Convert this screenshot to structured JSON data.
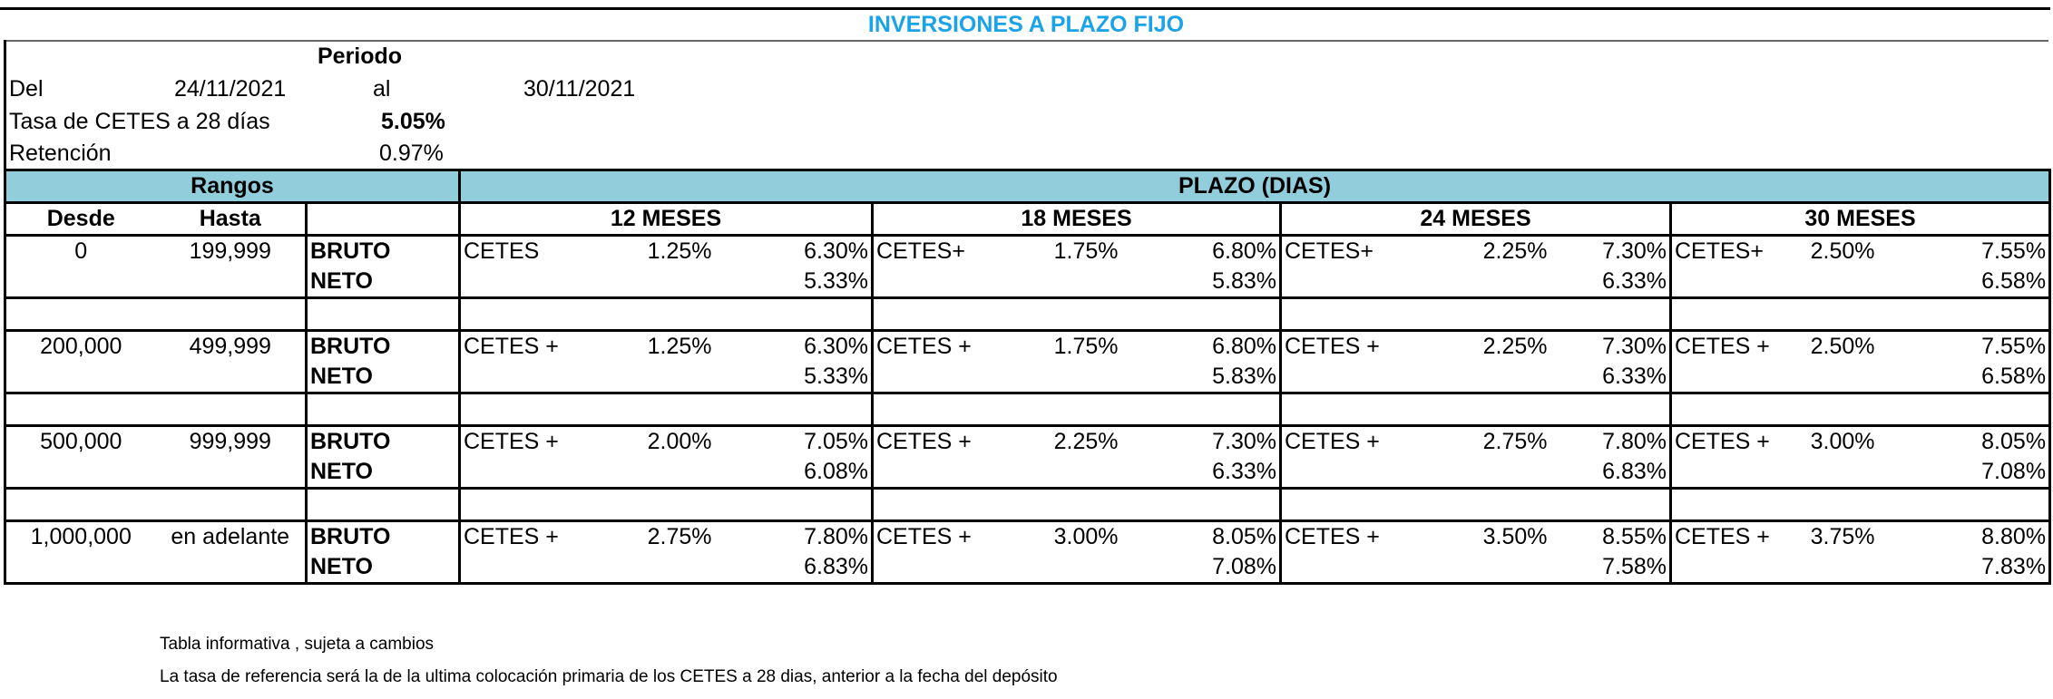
{
  "title": "INVERSIONES A PLAZO FIJO",
  "period": {
    "heading": "Periodo",
    "from_label": "Del",
    "from_date": "24/11/2021",
    "to_label": "al",
    "to_date": "30/11/2021",
    "cetes_label": "Tasa de CETES a 28 días",
    "cetes_rate": "5.05%",
    "retention_label": "Retención",
    "retention_rate": "0.97%"
  },
  "table": {
    "ranges_header": "Rangos",
    "plazo_header": "PLAZO (DIAS)",
    "desde_header": "Desde",
    "hasta_header": "Hasta",
    "terms": [
      "12 MESES",
      "18 MESES",
      "24 MESES",
      "30 MESES"
    ],
    "bruto_label": "BRUTO",
    "neto_label": "NETO",
    "groups": [
      {
        "desde": "0",
        "hasta": "199,999",
        "plazos": [
          {
            "label": "CETES",
            "spread": "1.25%",
            "bruto": "6.30%",
            "neto": "5.33%"
          },
          {
            "label": "CETES+",
            "spread": "1.75%",
            "bruto": "6.80%",
            "neto": "5.83%"
          },
          {
            "label": "CETES+",
            "spread": "2.25%",
            "bruto": "7.30%",
            "neto": "6.33%"
          },
          {
            "label": "CETES+",
            "spread": "2.50%",
            "bruto": "7.55%",
            "neto": "6.58%"
          }
        ]
      },
      {
        "desde": "200,000",
        "hasta": "499,999",
        "plazos": [
          {
            "label": "CETES +",
            "spread": "1.25%",
            "bruto": "6.30%",
            "neto": "5.33%"
          },
          {
            "label": "CETES +",
            "spread": "1.75%",
            "bruto": "6.80%",
            "neto": "5.83%"
          },
          {
            "label": "CETES +",
            "spread": "2.25%",
            "bruto": "7.30%",
            "neto": "6.33%"
          },
          {
            "label": "CETES +",
            "spread": "2.50%",
            "bruto": "7.55%",
            "neto": "6.58%"
          }
        ]
      },
      {
        "desde": "500,000",
        "hasta": "999,999",
        "plazos": [
          {
            "label": "CETES +",
            "spread": "2.00%",
            "bruto": "7.05%",
            "neto": "6.08%"
          },
          {
            "label": "CETES +",
            "spread": "2.25%",
            "bruto": "7.30%",
            "neto": "6.33%"
          },
          {
            "label": "CETES +",
            "spread": "2.75%",
            "bruto": "7.80%",
            "neto": "6.83%"
          },
          {
            "label": "CETES +",
            "spread": "3.00%",
            "bruto": "8.05%",
            "neto": "7.08%"
          }
        ]
      },
      {
        "desde": "1,000,000",
        "hasta": "en adelante",
        "plazos": [
          {
            "label": "CETES +",
            "spread": "2.75%",
            "bruto": "7.80%",
            "neto": "6.83%"
          },
          {
            "label": "CETES +",
            "spread": "3.00%",
            "bruto": "8.05%",
            "neto": "7.08%"
          },
          {
            "label": "CETES +",
            "spread": "3.50%",
            "bruto": "8.55%",
            "neto": "7.58%"
          },
          {
            "label": "CETES +",
            "spread": "3.75%",
            "bruto": "8.80%",
            "neto": "7.83%"
          }
        ]
      }
    ]
  },
  "footnotes": [
    "Tabla informativa , sujeta a cambios",
    "La tasa de referencia  será la de la ultima colocación primaria de los CETES a 28 dias, anterior a la fecha del depósito"
  ],
  "colors": {
    "title": "#1aa3e8",
    "header_band": "#92cddc"
  }
}
